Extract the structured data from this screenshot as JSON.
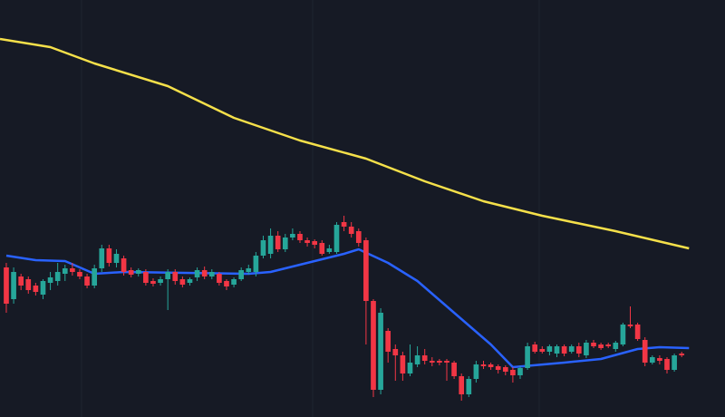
{
  "chart_data": {
    "type": "candlestick",
    "background": "#161a25",
    "up_color": "#26a69a",
    "down_color": "#f23645",
    "xlim": [
      -0.86,
      97.9
    ],
    "ylim": [
      0,
      460
    ],
    "open": [
      165,
      130,
      155,
      152,
      145,
      135,
      148,
      150,
      158,
      164,
      160,
      155,
      145,
      164,
      186,
      170,
      175,
      162,
      158,
      160,
      150,
      148,
      152,
      160,
      152,
      148,
      154,
      162,
      155,
      158,
      150,
      146,
      152,
      160,
      160,
      178,
      180,
      200,
      185,
      198,
      202,
      195,
      194,
      192,
      182,
      182,
      215,
      210,
      205,
      195,
      128,
      30,
      95,
      75,
      68,
      48,
      58,
      68,
      62,
      62,
      62,
      60,
      45,
      25,
      42,
      58,
      58,
      56,
      55,
      52,
      46,
      54,
      80,
      75,
      72,
      70,
      78,
      72,
      78,
      68,
      82,
      80,
      80,
      75,
      80,
      102,
      102,
      85,
      60,
      65,
      64,
      52,
      70
    ],
    "high": [
      170,
      165,
      158,
      155,
      148,
      152,
      160,
      170,
      168,
      170,
      163,
      158,
      168,
      190,
      190,
      185,
      178,
      165,
      164,
      163,
      153,
      155,
      163,
      163,
      155,
      154,
      165,
      166,
      163,
      160,
      152,
      154,
      165,
      168,
      182,
      200,
      208,
      205,
      202,
      208,
      205,
      198,
      196,
      195,
      190,
      215,
      222,
      215,
      208,
      198,
      130,
      120,
      98,
      80,
      72,
      80,
      78,
      75,
      66,
      64,
      64,
      62,
      48,
      45,
      62,
      62,
      60,
      58,
      57,
      55,
      56,
      82,
      83,
      78,
      80,
      80,
      80,
      80,
      82,
      85,
      85,
      82,
      82,
      84,
      104,
      122,
      104,
      88,
      68,
      68,
      66,
      70,
      72
    ],
    "low": [
      115,
      125,
      140,
      136,
      134,
      130,
      140,
      145,
      150,
      156,
      152,
      142,
      142,
      160,
      166,
      165,
      156,
      154,
      155,
      145,
      144,
      145,
      118,
      146,
      143,
      145,
      150,
      152,
      152,
      145,
      140,
      143,
      150,
      157,
      155,
      175,
      175,
      182,
      182,
      195,
      192,
      188,
      186,
      178,
      180,
      180,
      205,
      198,
      188,
      80,
      22,
      25,
      60,
      40,
      40,
      45,
      55,
      58,
      56,
      57,
      40,
      42,
      18,
      22,
      38,
      53,
      52,
      48,
      46,
      38,
      42,
      52,
      70,
      70,
      68,
      66,
      67,
      70,
      66,
      65,
      76,
      74,
      76,
      72,
      78,
      98,
      84,
      56,
      58,
      58,
      48,
      50,
      66
    ],
    "close": [
      125,
      160,
      145,
      140,
      138,
      150,
      154,
      160,
      164,
      160,
      155,
      145,
      164,
      186,
      170,
      180,
      160,
      157,
      162,
      148,
      147,
      152,
      160,
      150,
      146,
      152,
      162,
      155,
      160,
      148,
      144,
      152,
      162,
      164,
      178,
      195,
      200,
      185,
      198,
      202,
      195,
      192,
      190,
      180,
      186,
      212,
      210,
      202,
      192,
      128,
      30,
      115,
      72,
      68,
      48,
      60,
      68,
      62,
      60,
      60,
      60,
      45,
      25,
      42,
      58,
      56,
      55,
      52,
      50,
      46,
      54,
      78,
      72,
      72,
      78,
      78,
      70,
      78,
      70,
      82,
      78,
      76,
      78,
      82,
      102,
      100,
      86,
      60,
      66,
      62,
      52,
      68,
      68
    ],
    "series": [
      {
        "color": "#2962ff",
        "x": [
          0,
          4,
          8,
          12,
          16,
          33,
          36,
          41,
          46,
          48,
          52,
          56,
          61,
          66,
          69,
          76,
          81,
          86,
          89,
          93
        ],
        "values": [
          178,
          173,
          172,
          158,
          160,
          158,
          160,
          170,
          180,
          185,
          170,
          150,
          115,
          80,
          55,
          60,
          64,
          75,
          77,
          76
        ]
      },
      {
        "color": "#f5e04a",
        "x": [
          -0.86,
          6,
          12,
          22,
          31,
          40,
          49,
          57,
          65,
          73,
          83,
          93
        ],
        "values": [
          417,
          408,
          390,
          365,
          330,
          305,
          285,
          260,
          238,
          222,
          205,
          186
        ]
      }
    ]
  }
}
